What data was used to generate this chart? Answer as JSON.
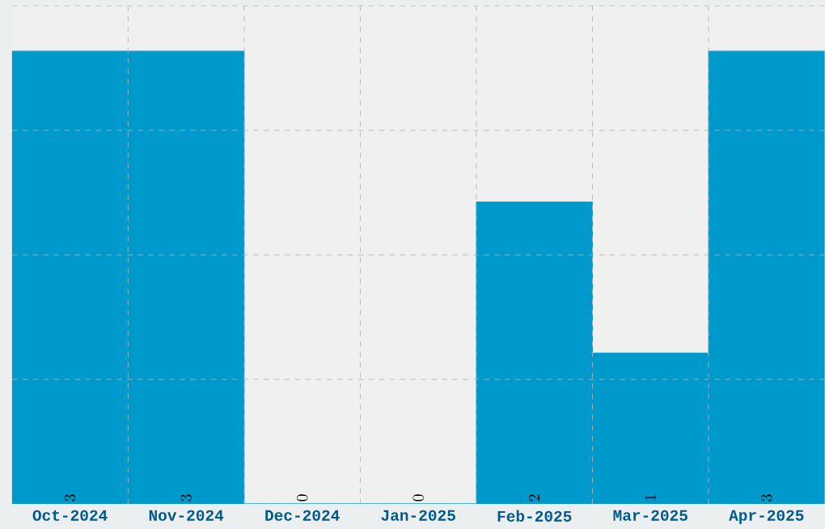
{
  "chart_data": {
    "type": "bar",
    "categories": [
      "Oct-2024",
      "Nov-2024",
      "Dec-2024",
      "Jan-2025",
      "Feb-2025",
      "Mar-2025",
      "Apr-2025"
    ],
    "values": [
      3,
      3,
      0,
      0,
      2,
      1,
      3
    ],
    "color": "#0099cc",
    "ylim": [
      0,
      3.3
    ],
    "yticks": [
      {
        "value": 0.825,
        "label": null
      },
      {
        "value": 1.65,
        "label": null
      },
      {
        "value": 2.475,
        "label": null
      },
      {
        "value": 3.3,
        "label": null
      }
    ],
    "tick_labels": "x",
    "data_labels": true,
    "grid": true
  }
}
